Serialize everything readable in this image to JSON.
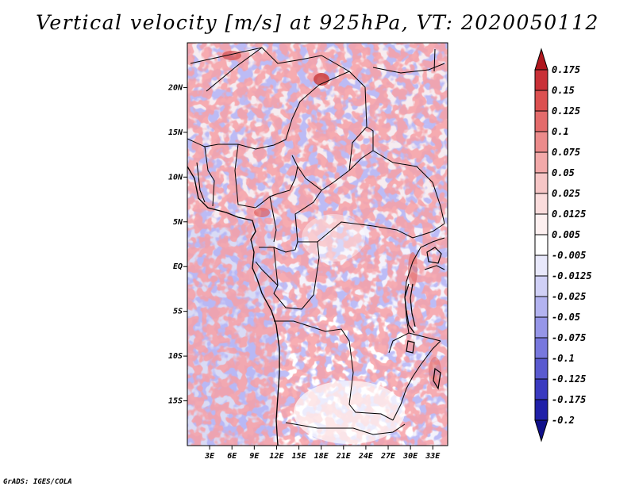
{
  "title": "Vertical velocity [m/s] at 925hPa, VT: 2020050112",
  "credit": "GrADS: IGES/COLA",
  "map": {
    "lat_labels": [
      "20N",
      "15N",
      "10N",
      "5N",
      "EQ",
      "5S",
      "10S",
      "15S"
    ],
    "lat_values": [
      20,
      15,
      10,
      5,
      0,
      -5,
      -10,
      -15
    ],
    "lon_labels": [
      "3E",
      "6E",
      "9E",
      "12E",
      "15E",
      "18E",
      "21E",
      "24E",
      "27E",
      "30E",
      "33E"
    ],
    "lon_values": [
      3,
      6,
      9,
      12,
      15,
      18,
      21,
      24,
      27,
      30,
      33
    ],
    "lon_range": [
      0,
      35
    ],
    "lat_range": [
      -20,
      25
    ]
  },
  "colorbar": {
    "labels": [
      "0.175",
      "0.15",
      "0.125",
      "0.1",
      "0.075",
      "0.05",
      "0.025",
      "0.0125",
      "0.005",
      "-0.005",
      "-0.0125",
      "-0.025",
      "-0.05",
      "-0.075",
      "-0.1",
      "-0.125",
      "-0.175",
      "-0.2"
    ],
    "colors": [
      "#b0171e",
      "#c93037",
      "#dc5050",
      "#e46b6b",
      "#ec8b8b",
      "#f2a9a9",
      "#f6c6c6",
      "#fadcdc",
      "#fdf0f0",
      "#ffffff",
      "#e8e8fb",
      "#d0d0f6",
      "#b3b3f0",
      "#9696e8",
      "#7878de",
      "#5a5ad0",
      "#3a3ac0",
      "#2020a8",
      "#10108a"
    ]
  }
}
